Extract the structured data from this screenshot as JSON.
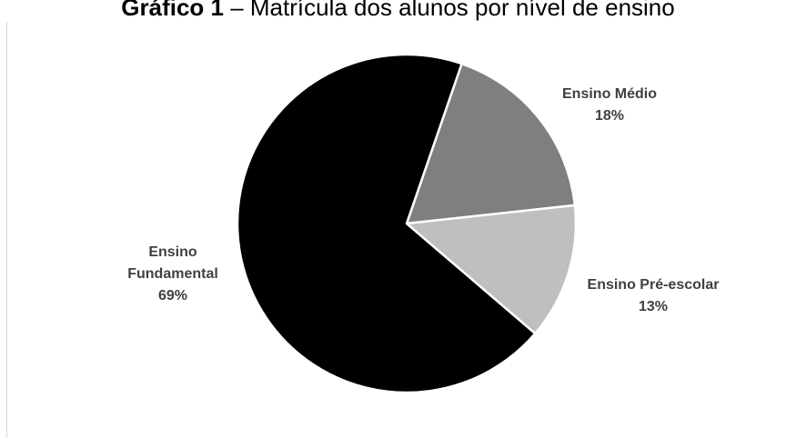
{
  "title": {
    "bold_part": "Gráfico 1",
    "rest": " – Matrícula dos alunos por nível de ensino"
  },
  "chart_data": {
    "type": "pie",
    "title": "Gráfico 1 – Matrícula dos alunos por nível de ensino",
    "slices": [
      {
        "name": "Ensino Médio",
        "value": 18,
        "value_label": "18%",
        "color": "#7f7f7f"
      },
      {
        "name": "Ensino Pré-escolar",
        "value": 13,
        "value_label": "13%",
        "color": "#bfbfbf"
      },
      {
        "name": "Ensino Fundamental",
        "value": 69,
        "value_label": "69%",
        "color": "#000000"
      }
    ],
    "label_lines": {
      "medio": [
        "Ensino Médio",
        "18%"
      ],
      "pre_escolar": [
        "Ensino Pré-escolar",
        "13%"
      ],
      "fundamental": [
        "Ensino",
        "Fundamental",
        "69%"
      ]
    },
    "slice_border_color": "#ffffff",
    "legend": "none",
    "grid": false
  }
}
